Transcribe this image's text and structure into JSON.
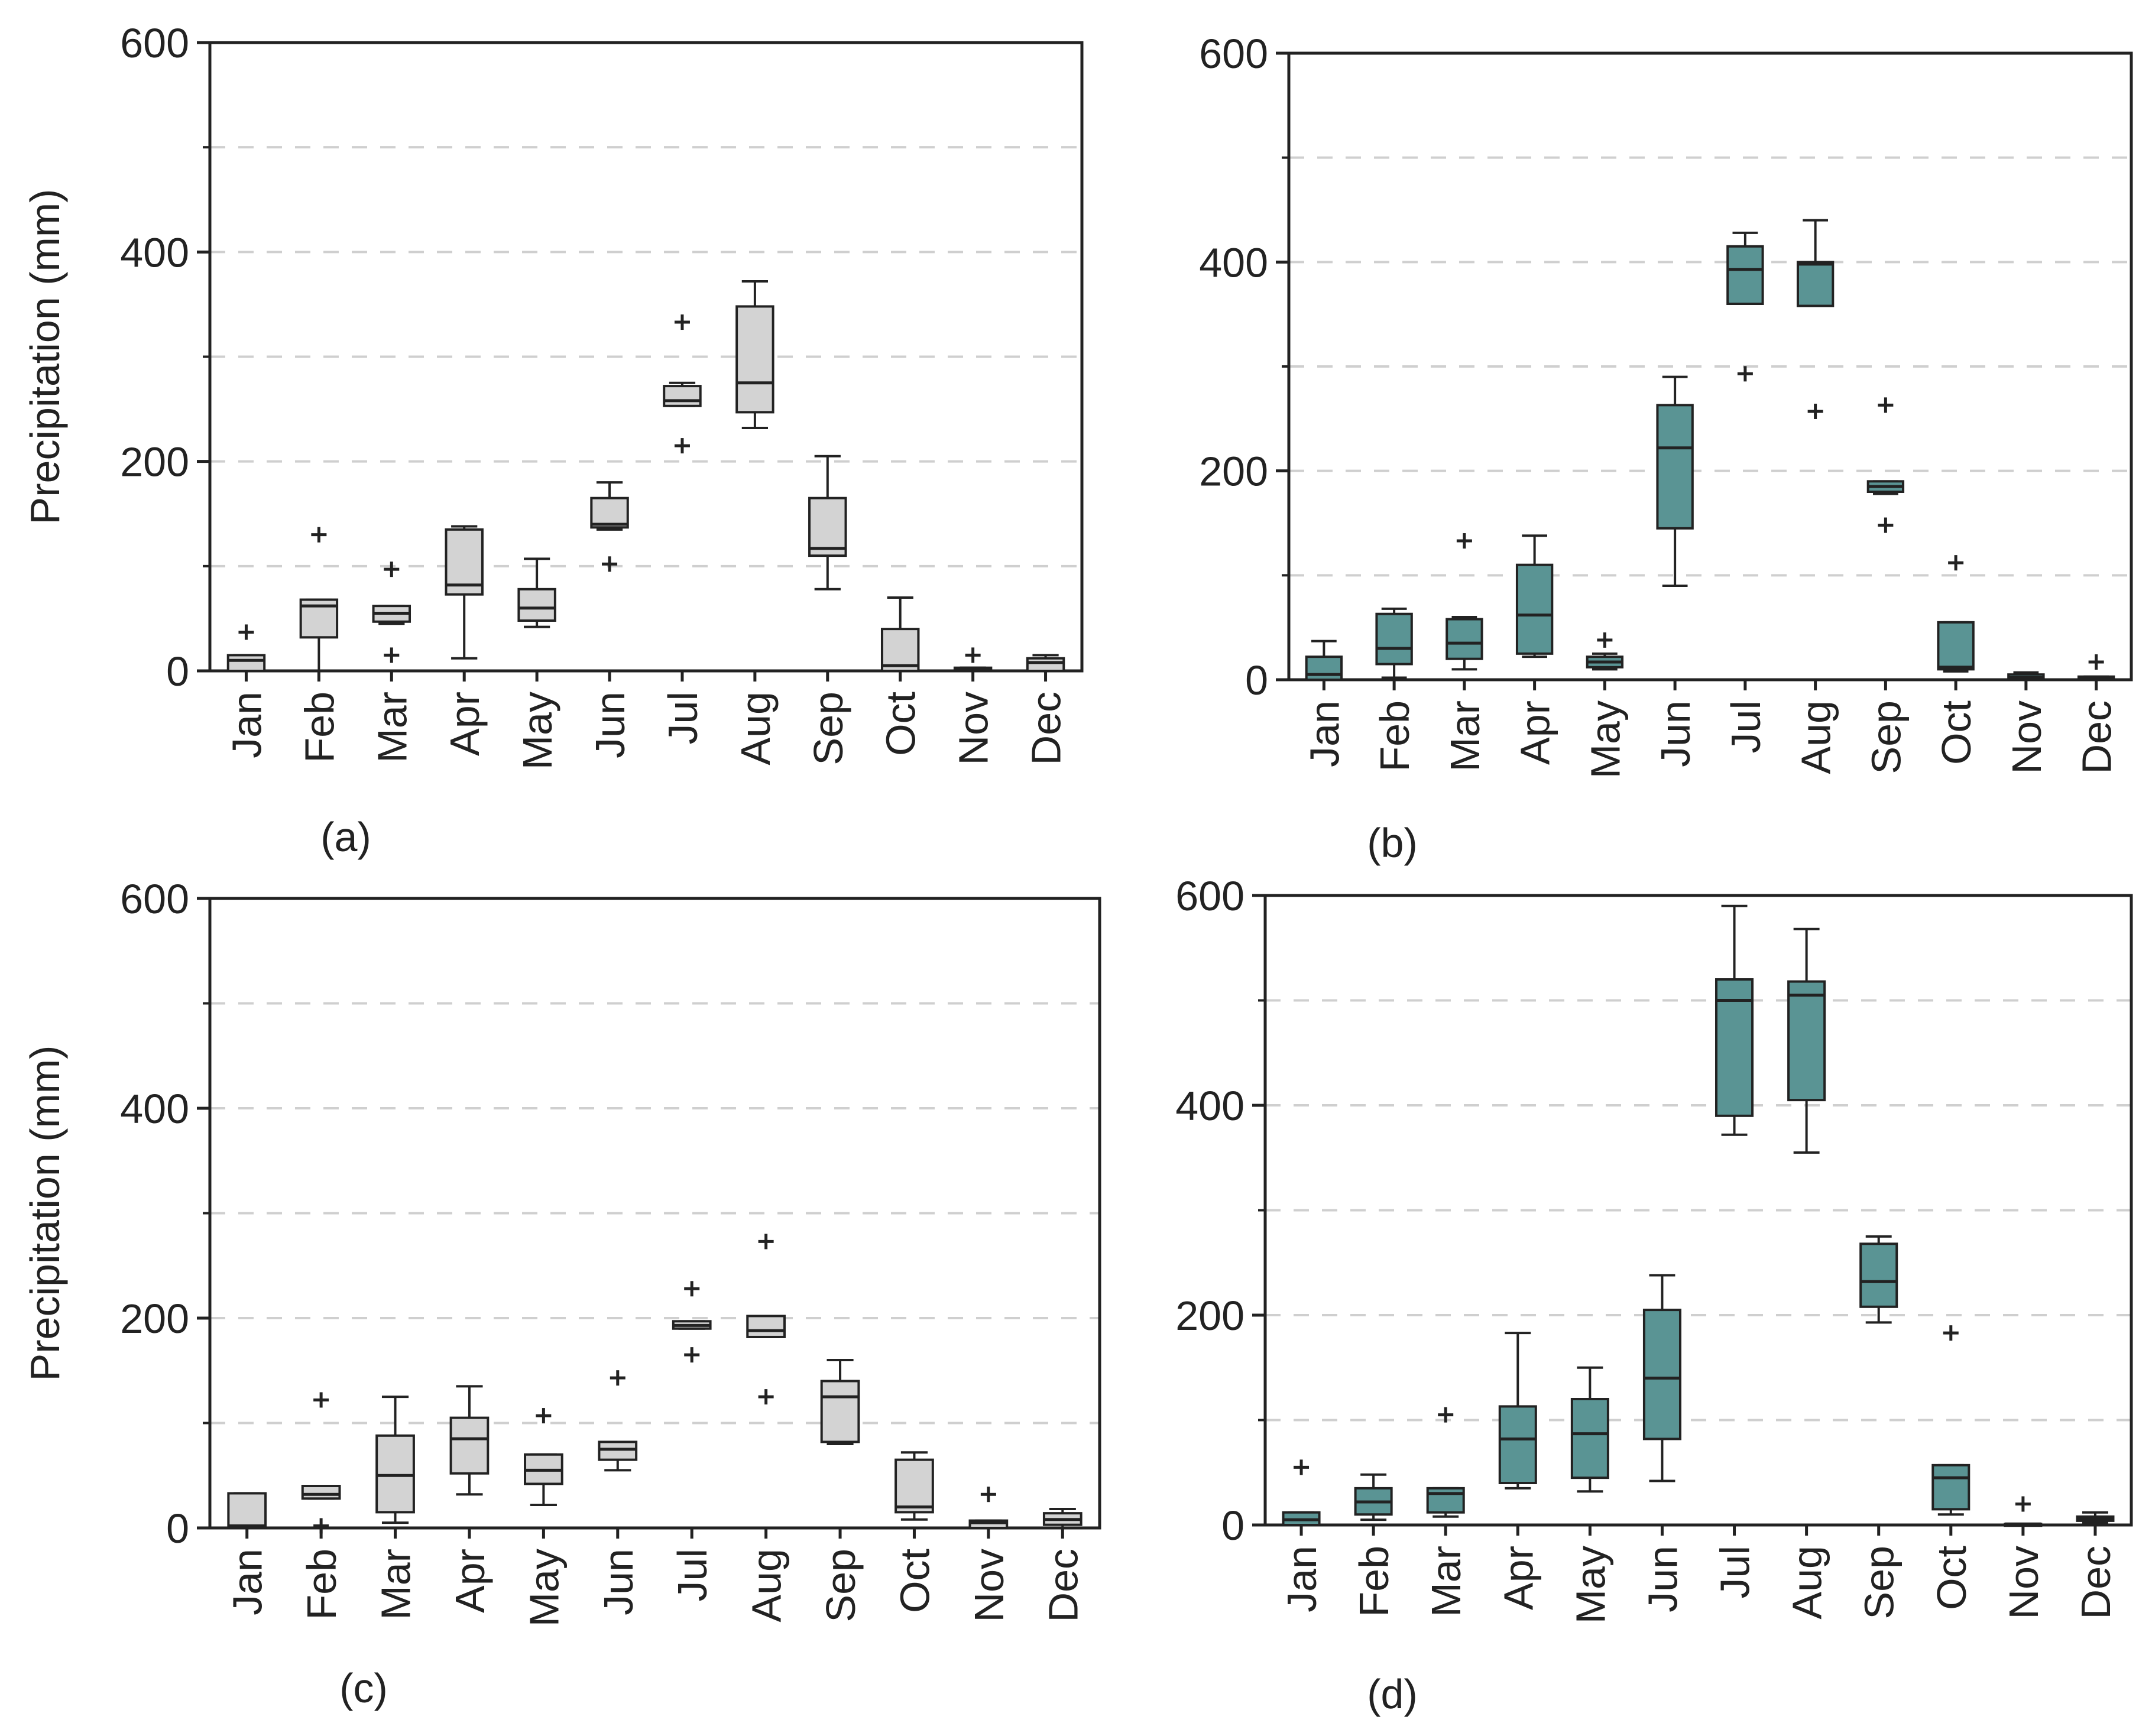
{
  "figure": {
    "months": [
      "Jan",
      "Feb",
      "Mar",
      "Apr",
      "May",
      "Jun",
      "Jul",
      "Aug",
      "Sep",
      "Oct",
      "Nov",
      "Dec"
    ],
    "yticks": [
      "0",
      "200",
      "400",
      "600"
    ],
    "ylabel": "Precipitation (mm)"
  },
  "colors": {
    "gray_box": "#d3d3d3",
    "teal_box": "#5a9494",
    "grid": "#cfcfcf",
    "axis": "#222222"
  },
  "chart_data": [
    {
      "type": "box",
      "panel": "(a)",
      "ylabel": "Precipitation (mm)",
      "xlabel": "",
      "ylim": [
        0,
        600
      ],
      "yticks": [
        0,
        200,
        400,
        600
      ],
      "categories": [
        "Jan",
        "Feb",
        "Mar",
        "Apr",
        "May",
        "Jun",
        "Jul",
        "Aug",
        "Sep",
        "Oct",
        "Nov",
        "Dec"
      ],
      "boxes": [
        {
          "min": 0,
          "q1": 0,
          "median": 10,
          "q3": 15,
          "max": 15,
          "outliers": [
            37
          ]
        },
        {
          "min": 0,
          "q1": 32,
          "median": 62,
          "q3": 68,
          "max": 68,
          "outliers": [
            130
          ]
        },
        {
          "min": 45,
          "q1": 47,
          "median": 55,
          "q3": 62,
          "max": 62,
          "outliers": [
            97,
            15
          ]
        },
        {
          "min": 12,
          "q1": 73,
          "median": 82,
          "q3": 135,
          "max": 138,
          "outliers": []
        },
        {
          "min": 42,
          "q1": 48,
          "median": 60,
          "q3": 78,
          "max": 107,
          "outliers": []
        },
        {
          "min": 135,
          "q1": 137,
          "median": 140,
          "q3": 165,
          "max": 180,
          "outliers": [
            102
          ]
        },
        {
          "min": 253,
          "q1": 253,
          "median": 258,
          "q3": 272,
          "max": 275,
          "outliers": [
            333,
            215
          ]
        },
        {
          "min": 232,
          "q1": 247,
          "median": 275,
          "q3": 348,
          "max": 372,
          "outliers": []
        },
        {
          "min": 78,
          "q1": 110,
          "median": 117,
          "q3": 165,
          "max": 205,
          "outliers": []
        },
        {
          "min": 0,
          "q1": 0,
          "median": 5,
          "q3": 40,
          "max": 70,
          "outliers": []
        },
        {
          "min": 0,
          "q1": 0,
          "median": 2,
          "q3": 3,
          "max": 3,
          "outliers": [
            15
          ]
        },
        {
          "min": 0,
          "q1": 0,
          "median": 8,
          "q3": 12,
          "max": 15,
          "outliers": []
        }
      ],
      "box_color": "#d3d3d3"
    },
    {
      "type": "box",
      "panel": "(b)",
      "ylabel": "",
      "xlabel": "",
      "ylim": [
        0,
        600
      ],
      "yticks": [
        0,
        200,
        400,
        600
      ],
      "categories": [
        "Jan",
        "Feb",
        "Mar",
        "Apr",
        "May",
        "Jun",
        "Jul",
        "Aug",
        "Sep",
        "Oct",
        "Nov",
        "Dec"
      ],
      "boxes": [
        {
          "min": 0,
          "q1": 0,
          "median": 5,
          "q3": 22,
          "max": 37,
          "outliers": []
        },
        {
          "min": 2,
          "q1": 15,
          "median": 30,
          "q3": 63,
          "max": 68,
          "outliers": []
        },
        {
          "min": 10,
          "q1": 20,
          "median": 35,
          "q3": 58,
          "max": 60,
          "outliers": [
            133
          ]
        },
        {
          "min": 22,
          "q1": 25,
          "median": 62,
          "q3": 110,
          "max": 138,
          "outliers": []
        },
        {
          "min": 10,
          "q1": 12,
          "median": 17,
          "q3": 22,
          "max": 25,
          "outliers": [
            38
          ]
        },
        {
          "min": 90,
          "q1": 145,
          "median": 222,
          "q3": 263,
          "max": 290,
          "outliers": []
        },
        {
          "min": 360,
          "q1": 360,
          "median": 393,
          "q3": 415,
          "max": 428,
          "outliers": [
            293
          ]
        },
        {
          "min": 358,
          "q1": 358,
          "median": 398,
          "q3": 400,
          "max": 440,
          "outliers": [
            257
          ]
        },
        {
          "min": 178,
          "q1": 180,
          "median": 185,
          "q3": 190,
          "max": 190,
          "outliers": [
            263,
            148
          ]
        },
        {
          "min": 8,
          "q1": 10,
          "median": 12,
          "q3": 55,
          "max": 55,
          "outliers": [
            112
          ]
        },
        {
          "min": 0,
          "q1": 0,
          "median": 2,
          "q3": 5,
          "max": 7,
          "outliers": []
        },
        {
          "min": 0,
          "q1": 0,
          "median": 2,
          "q3": 3,
          "max": 3,
          "outliers": [
            17
          ]
        }
      ],
      "box_color": "#5a9494"
    },
    {
      "type": "box",
      "panel": "(c)",
      "ylabel": "Precipitation (mm)",
      "xlabel": "",
      "ylim": [
        0,
        600
      ],
      "yticks": [
        0,
        200,
        400,
        600
      ],
      "categories": [
        "Jan",
        "Feb",
        "Mar",
        "Apr",
        "May",
        "Jun",
        "Jul",
        "Aug",
        "Sep",
        "Oct",
        "Nov",
        "Dec"
      ],
      "boxes": [
        {
          "min": 0,
          "q1": 0,
          "median": 2,
          "q3": 33,
          "max": 33,
          "outliers": []
        },
        {
          "min": 28,
          "q1": 28,
          "median": 32,
          "q3": 40,
          "max": 40,
          "outliers": [
            122,
            2
          ]
        },
        {
          "min": 5,
          "q1": 15,
          "median": 50,
          "q3": 88,
          "max": 125,
          "outliers": []
        },
        {
          "min": 32,
          "q1": 52,
          "median": 85,
          "q3": 105,
          "max": 135,
          "outliers": []
        },
        {
          "min": 22,
          "q1": 42,
          "median": 55,
          "q3": 70,
          "max": 70,
          "outliers": [
            107
          ]
        },
        {
          "min": 55,
          "q1": 65,
          "median": 75,
          "q3": 82,
          "max": 82,
          "outliers": [
            143
          ]
        },
        {
          "min": 190,
          "q1": 190,
          "median": 193,
          "q3": 197,
          "max": 197,
          "outliers": [
            228,
            165
          ]
        },
        {
          "min": 182,
          "q1": 182,
          "median": 188,
          "q3": 202,
          "max": 202,
          "outliers": [
            273,
            125
          ]
        },
        {
          "min": 80,
          "q1": 82,
          "median": 125,
          "q3": 140,
          "max": 160,
          "outliers": []
        },
        {
          "min": 8,
          "q1": 15,
          "median": 20,
          "q3": 65,
          "max": 72,
          "outliers": []
        },
        {
          "min": 0,
          "q1": 0,
          "median": 5,
          "q3": 7,
          "max": 7,
          "outliers": [
            32
          ]
        },
        {
          "min": 0,
          "q1": 3,
          "median": 8,
          "q3": 14,
          "max": 18,
          "outliers": []
        }
      ],
      "box_color": "#d3d3d3"
    },
    {
      "type": "box",
      "panel": "(d)",
      "ylabel": "",
      "xlabel": "",
      "ylim": [
        0,
        600
      ],
      "yticks": [
        0,
        200,
        400,
        600
      ],
      "categories": [
        "Jan",
        "Feb",
        "Mar",
        "Apr",
        "May",
        "Jun",
        "Jul",
        "Aug",
        "Sep",
        "Oct",
        "Nov",
        "Dec"
      ],
      "boxes": [
        {
          "min": 0,
          "q1": 0,
          "median": 5,
          "q3": 12,
          "max": 12,
          "outliers": [
            55
          ]
        },
        {
          "min": 5,
          "q1": 10,
          "median": 22,
          "q3": 35,
          "max": 48,
          "outliers": []
        },
        {
          "min": 8,
          "q1": 12,
          "median": 30,
          "q3": 35,
          "max": 35,
          "outliers": [
            105
          ]
        },
        {
          "min": 35,
          "q1": 40,
          "median": 82,
          "q3": 113,
          "max": 183,
          "outliers": []
        },
        {
          "min": 32,
          "q1": 45,
          "median": 87,
          "q3": 120,
          "max": 150,
          "outliers": []
        },
        {
          "min": 42,
          "q1": 82,
          "median": 140,
          "q3": 205,
          "max": 238,
          "outliers": []
        },
        {
          "min": 372,
          "q1": 390,
          "median": 500,
          "q3": 520,
          "max": 590,
          "outliers": []
        },
        {
          "min": 355,
          "q1": 405,
          "median": 505,
          "q3": 518,
          "max": 568,
          "outliers": []
        },
        {
          "min": 193,
          "q1": 208,
          "median": 232,
          "q3": 268,
          "max": 275,
          "outliers": []
        },
        {
          "min": 10,
          "q1": 15,
          "median": 45,
          "q3": 57,
          "max": 57,
          "outliers": [
            183
          ]
        },
        {
          "min": 0,
          "q1": 0,
          "median": 1,
          "q3": 1,
          "max": 1,
          "outliers": [
            20
          ]
        },
        {
          "min": 2,
          "q1": 4,
          "median": 6,
          "q3": 8,
          "max": 12,
          "outliers": []
        }
      ],
      "box_color": "#5a9494"
    }
  ]
}
